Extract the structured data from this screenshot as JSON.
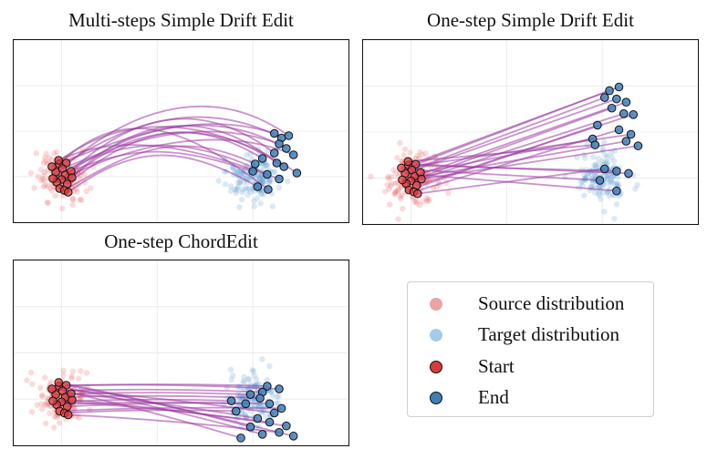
{
  "chart_data": [
    {
      "type": "scatter",
      "title": "Multi-steps Simple Drift Edit",
      "xlabel": "",
      "ylabel": "",
      "xlim": [
        -1,
        6
      ],
      "ylim": [
        -1,
        3
      ],
      "grid": true,
      "source": {
        "center": [
          0,
          0
        ],
        "spread": 0.26,
        "count": 140
      },
      "target": {
        "center": [
          4,
          0
        ],
        "spread": 0.26,
        "count": 140
      },
      "trajectories": "curved-arc",
      "start_points": [
        [
          -0.05,
          0.28
        ],
        [
          0.1,
          0.3
        ],
        [
          0.02,
          0.18
        ],
        [
          -0.12,
          0.1
        ],
        [
          0.08,
          0.04
        ],
        [
          0.0,
          -0.06
        ],
        [
          -0.1,
          -0.12
        ],
        [
          0.12,
          -0.16
        ],
        [
          -0.04,
          -0.26
        ],
        [
          0.06,
          -0.3
        ],
        [
          -0.2,
          0.22
        ],
        [
          0.2,
          0.12
        ],
        [
          -0.18,
          -0.04
        ],
        [
          0.22,
          -0.02
        ],
        [
          -0.06,
          0.36
        ],
        [
          0.14,
          -0.34
        ]
      ],
      "end_points": [
        [
          4.45,
          0.95
        ],
        [
          4.6,
          0.85
        ],
        [
          4.75,
          0.9
        ],
        [
          4.55,
          0.72
        ],
        [
          4.7,
          0.62
        ],
        [
          4.45,
          0.52
        ],
        [
          4.85,
          0.48
        ],
        [
          4.2,
          0.4
        ],
        [
          4.5,
          0.3
        ],
        [
          4.05,
          0.28
        ],
        [
          4.65,
          0.22
        ],
        [
          4.0,
          0.12
        ],
        [
          4.3,
          0.05
        ],
        [
          4.92,
          0.08
        ],
        [
          4.55,
          -0.05
        ],
        [
          4.1,
          -0.22
        ],
        [
          4.32,
          -0.28
        ]
      ]
    },
    {
      "type": "scatter",
      "title": "One-step Simple Drift Edit",
      "xlabel": "",
      "ylabel": "",
      "xlim": [
        -1,
        6
      ],
      "ylim": [
        -1,
        3
      ],
      "grid": true,
      "source": {
        "center": [
          0,
          0
        ],
        "spread": 0.26,
        "count": 140
      },
      "target": {
        "center": [
          4,
          0
        ],
        "spread": 0.26,
        "count": 140
      },
      "trajectories": "straight",
      "start_points": [
        [
          -0.05,
          0.28
        ],
        [
          0.1,
          0.3
        ],
        [
          0.02,
          0.18
        ],
        [
          -0.12,
          0.1
        ],
        [
          0.08,
          0.04
        ],
        [
          0.0,
          -0.06
        ],
        [
          -0.1,
          -0.12
        ],
        [
          0.12,
          -0.16
        ],
        [
          -0.04,
          -0.26
        ],
        [
          0.06,
          -0.3
        ],
        [
          -0.2,
          0.22
        ],
        [
          0.2,
          0.12
        ],
        [
          -0.18,
          -0.04
        ],
        [
          0.22,
          -0.02
        ],
        [
          -0.06,
          0.36
        ],
        [
          0.14,
          -0.34
        ]
      ],
      "end_points": [
        [
          4.15,
          1.9
        ],
        [
          4.35,
          1.98
        ],
        [
          4.05,
          1.75
        ],
        [
          4.3,
          1.72
        ],
        [
          4.5,
          1.65
        ],
        [
          4.2,
          1.52
        ],
        [
          4.45,
          1.4
        ],
        [
          4.65,
          1.38
        ],
        [
          3.9,
          1.15
        ],
        [
          4.35,
          1.05
        ],
        [
          4.6,
          0.95
        ],
        [
          3.8,
          0.85
        ],
        [
          4.5,
          0.8
        ],
        [
          4.75,
          0.7
        ],
        [
          3.85,
          0.72
        ],
        [
          4.05,
          0.2
        ],
        [
          4.3,
          0.15
        ],
        [
          4.55,
          0.1
        ],
        [
          3.95,
          -0.05
        ],
        [
          4.3,
          -0.28
        ]
      ]
    },
    {
      "type": "scatter",
      "title": "One-step ChordEdit",
      "xlabel": "",
      "ylabel": "",
      "xlim": [
        -1,
        6
      ],
      "ylim": [
        -1,
        3
      ],
      "grid": true,
      "source": {
        "center": [
          0,
          0
        ],
        "spread": 0.26,
        "count": 140
      },
      "target": {
        "center": [
          4,
          0
        ],
        "spread": 0.26,
        "count": 140
      },
      "trajectories": "slight-curve",
      "start_points": [
        [
          -0.05,
          0.28
        ],
        [
          0.1,
          0.3
        ],
        [
          0.02,
          0.18
        ],
        [
          -0.12,
          0.1
        ],
        [
          0.08,
          0.04
        ],
        [
          0.0,
          -0.06
        ],
        [
          -0.1,
          -0.12
        ],
        [
          0.12,
          -0.16
        ],
        [
          -0.04,
          -0.26
        ],
        [
          0.06,
          -0.3
        ],
        [
          -0.2,
          0.22
        ],
        [
          0.2,
          0.12
        ],
        [
          -0.18,
          -0.04
        ],
        [
          0.22,
          -0.02
        ],
        [
          -0.06,
          0.36
        ],
        [
          0.14,
          -0.34
        ]
      ],
      "end_points": [
        [
          4.3,
          0.28
        ],
        [
          4.55,
          0.22
        ],
        [
          4.2,
          0.15
        ],
        [
          3.95,
          0.1
        ],
        [
          4.15,
          0.02
        ],
        [
          3.55,
          -0.04
        ],
        [
          3.85,
          -0.1
        ],
        [
          4.35,
          -0.1
        ],
        [
          4.6,
          -0.2
        ],
        [
          3.65,
          -0.26
        ],
        [
          4.45,
          -0.3
        ],
        [
          4.1,
          -0.42
        ],
        [
          4.35,
          -0.5
        ],
        [
          4.7,
          -0.58
        ],
        [
          3.95,
          -0.6
        ],
        [
          4.55,
          -0.72
        ],
        [
          4.2,
          -0.76
        ],
        [
          4.85,
          -0.8
        ],
        [
          3.75,
          -0.84
        ]
      ]
    }
  ],
  "legend": {
    "items": [
      {
        "label": "Source distribution",
        "color": "#eba3a3",
        "kind": "faded"
      },
      {
        "label": "Target distribution",
        "color": "#a6cbe8",
        "kind": "faded"
      },
      {
        "label": "Start",
        "color": "#d93b3b",
        "kind": "solid"
      },
      {
        "label": "End",
        "color": "#3f7fb8",
        "kind": "solid"
      }
    ]
  },
  "colors": {
    "source": "#e8595a",
    "target": "#5b9bd0",
    "start": "#d93b3b",
    "end": "#3f7fb8",
    "trajectory": "#9a3aa0",
    "grid": "#ececec"
  }
}
